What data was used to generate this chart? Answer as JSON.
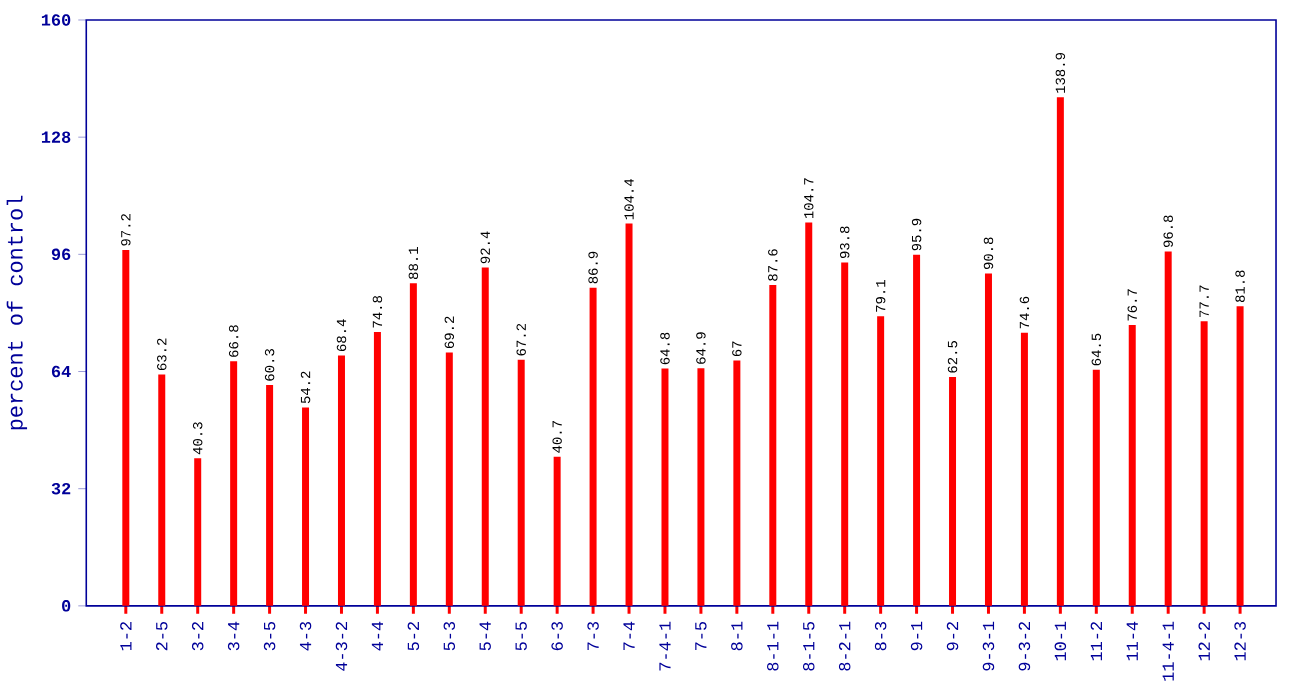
{
  "chart_data": {
    "type": "bar",
    "ylabel": "percent of control",
    "categories": [
      "1-2",
      "2-5",
      "3-2",
      "3-4",
      "3-5",
      "4-3",
      "4-3-2",
      "4-4",
      "5-2",
      "5-3",
      "5-4",
      "5-5",
      "6-3",
      "7-3",
      "7-4",
      "7-4-1",
      "7-5",
      "8-1",
      "8-1-1",
      "8-1-5",
      "8-2-1",
      "8-3",
      "9-1",
      "9-2",
      "9-3-1",
      "9-3-2",
      "10-1",
      "11-2",
      "11-4",
      "11-4-1",
      "12-2",
      "12-3"
    ],
    "values": [
      97.2,
      63.2,
      40.3,
      66.8,
      60.3,
      54.2,
      68.4,
      74.8,
      88.1,
      69.2,
      92.4,
      67.2,
      40.7,
      86.9,
      104.4,
      64.8,
      64.9,
      67,
      87.6,
      104.7,
      93.8,
      79.1,
      95.9,
      62.5,
      90.8,
      74.6,
      138.9,
      64.5,
      76.7,
      96.8,
      77.7,
      81.8
    ],
    "color": "#ff0000",
    "ylim": [
      0,
      160
    ],
    "yticks": [
      0,
      32,
      64,
      96,
      128,
      160
    ],
    "data_labels": true,
    "grid": false
  }
}
